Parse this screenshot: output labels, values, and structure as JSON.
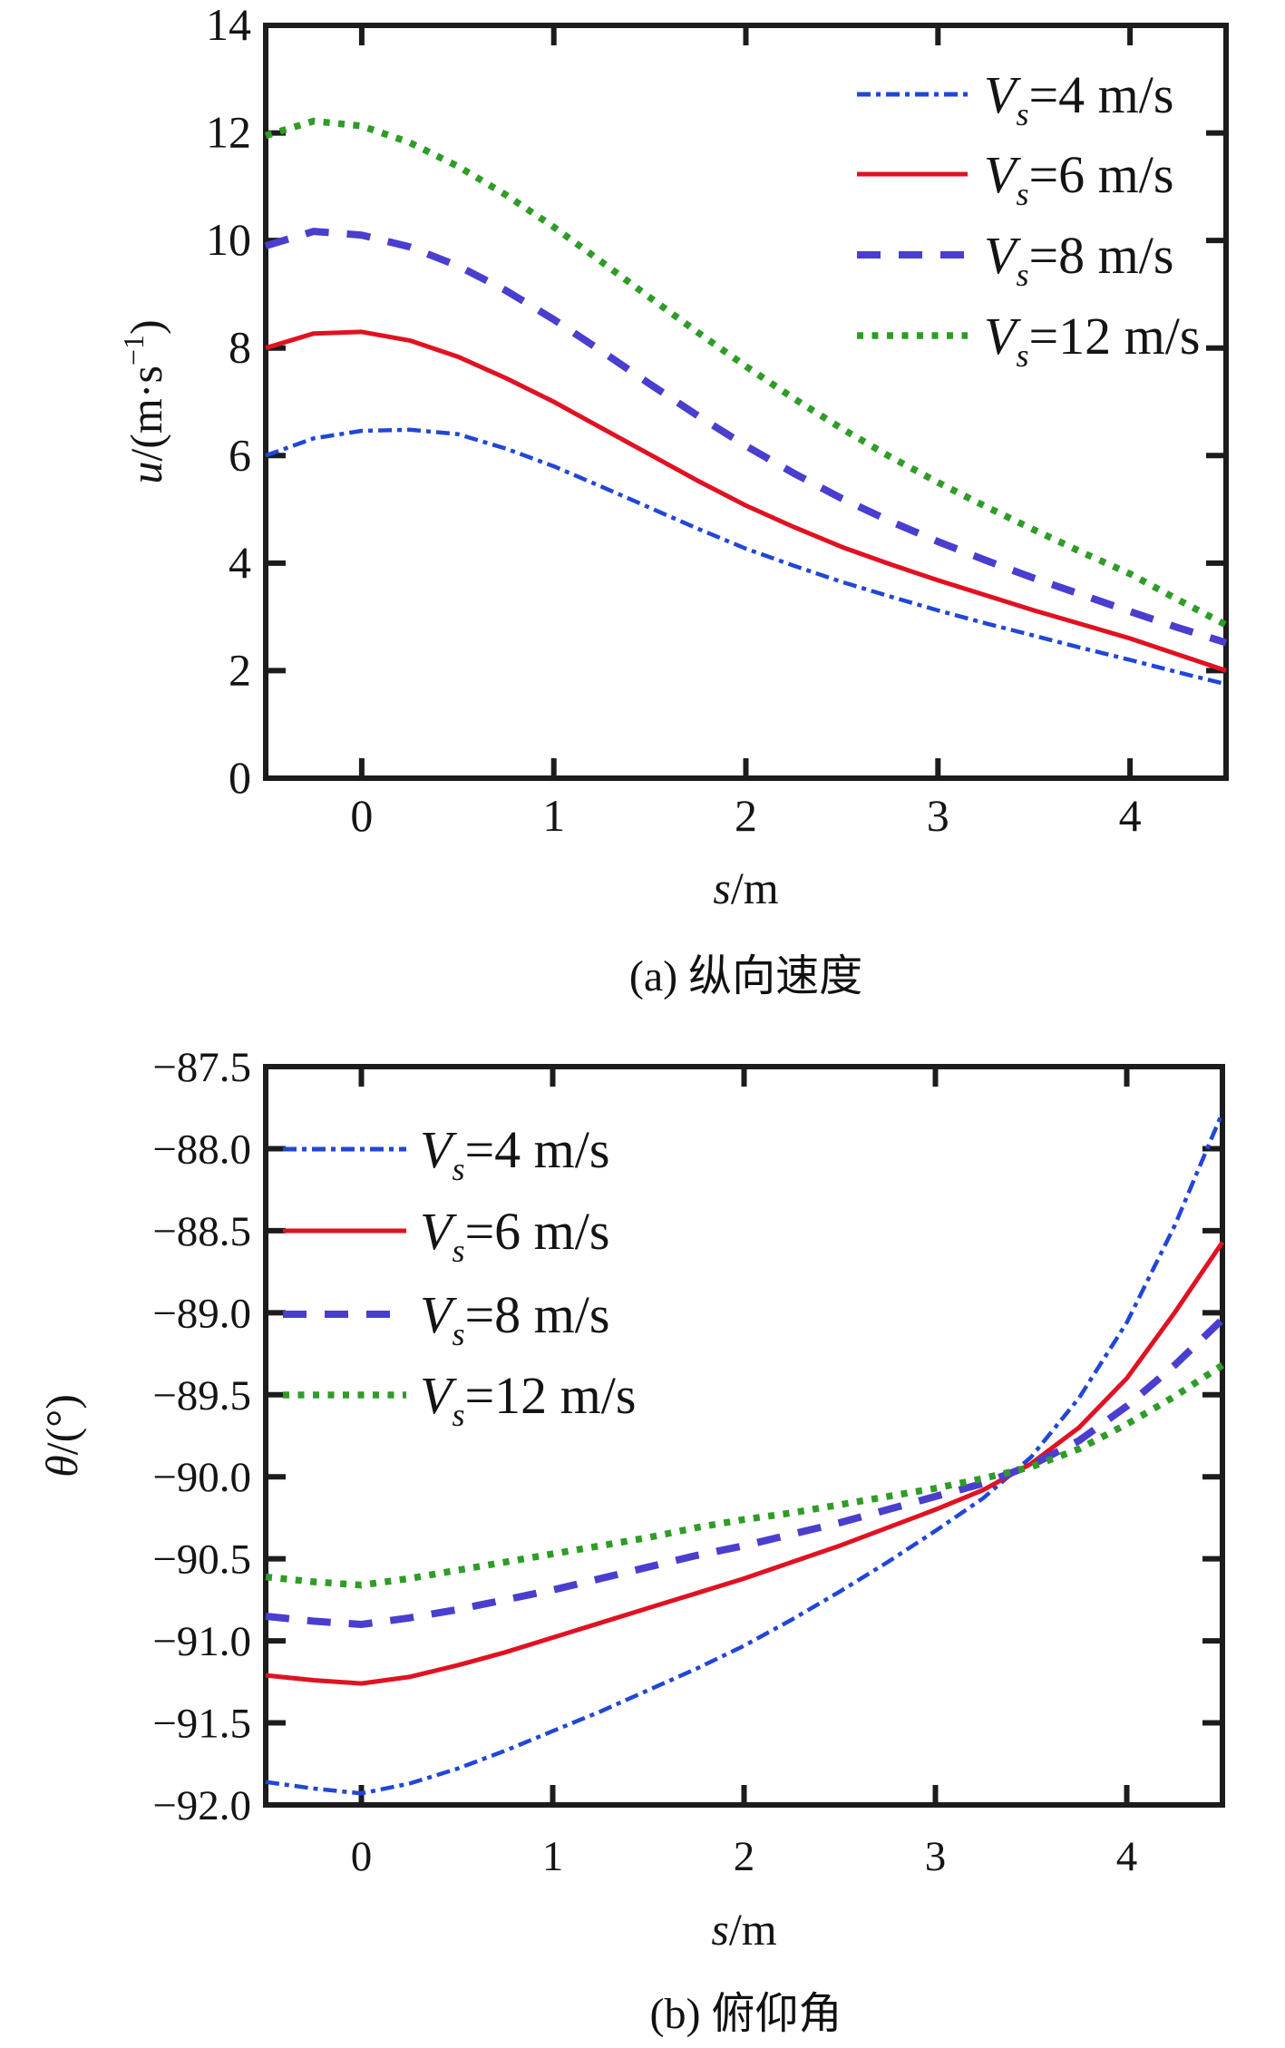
{
  "axis_color": "#1c1c1c",
  "background_color": "#ffffff",
  "chart_data": [
    {
      "id": "a",
      "type": "line",
      "title": "(a) 纵向速度",
      "xlabel": "s/m",
      "ylabel": "u/(m·s⁻¹)",
      "xlabel_parts": [
        {
          "t": "s",
          "i": 1
        },
        {
          "t": "/m"
        }
      ],
      "ylabel_parts": [
        {
          "t": "u",
          "i": 1
        },
        {
          "t": "/(m·s"
        },
        {
          "t": "−1",
          "sup": 1
        },
        {
          "t": ")"
        }
      ],
      "xlim": [
        -0.5,
        4.5
      ],
      "ylim": [
        0,
        14
      ],
      "xticks": {
        "values": [
          0,
          1,
          2,
          3,
          4
        ],
        "labels": [
          "0",
          "1",
          "2",
          "3",
          "4"
        ]
      },
      "yticks": {
        "values": [
          0,
          2,
          4,
          6,
          8,
          10,
          12,
          14
        ],
        "labels": [
          "0",
          "2",
          "4",
          "6",
          "8",
          "10",
          "12",
          "14"
        ]
      },
      "grid": false,
      "legend_position": "top-right",
      "x": [
        -0.5,
        -0.25,
        0,
        0.25,
        0.5,
        0.75,
        1,
        1.25,
        1.5,
        1.75,
        2,
        2.25,
        2.5,
        2.75,
        3,
        3.25,
        3.5,
        3.75,
        4,
        4.25,
        4.5
      ],
      "series": [
        {
          "key": "vs4",
          "label": "Vs=4 m/s",
          "label_parts": [
            {
              "t": "V",
              "i": 1
            },
            {
              "t": "s",
              "i": 1,
              "sub": 1
            },
            {
              "t": "=4 m/s"
            }
          ],
          "color": "#2147d6",
          "line_style": "dash-dot",
          "width": 4.5,
          "y": [
            6.0,
            6.32,
            6.46,
            6.48,
            6.4,
            6.13,
            5.8,
            5.42,
            5.03,
            4.64,
            4.27,
            3.95,
            3.65,
            3.38,
            3.12,
            2.88,
            2.65,
            2.42,
            2.2,
            1.97,
            1.75
          ]
        },
        {
          "key": "vs6",
          "label": "Vs=6 m/s",
          "label_parts": [
            {
              "t": "V",
              "i": 1
            },
            {
              "t": "s",
              "i": 1,
              "sub": 1
            },
            {
              "t": "=6 m/s"
            }
          ],
          "color": "#e01222",
          "line_style": "solid",
          "width": 5,
          "y": [
            8.0,
            8.27,
            8.3,
            8.14,
            7.84,
            7.44,
            7.0,
            6.51,
            6.02,
            5.53,
            5.07,
            4.67,
            4.3,
            3.98,
            3.68,
            3.4,
            3.12,
            2.86,
            2.6,
            2.3,
            2.0
          ]
        },
        {
          "key": "vs8",
          "label": "Vs=8 m/s",
          "label_parts": [
            {
              "t": "V",
              "i": 1
            },
            {
              "t": "s",
              "i": 1,
              "sub": 1
            },
            {
              "t": "=8 m/s"
            }
          ],
          "color": "#4a3ecf",
          "line_style": "dashed",
          "width": 8,
          "y": [
            9.9,
            10.17,
            10.1,
            9.88,
            9.53,
            9.07,
            8.53,
            7.94,
            7.33,
            6.74,
            6.18,
            5.67,
            5.2,
            4.78,
            4.4,
            4.05,
            3.72,
            3.41,
            3.1,
            2.8,
            2.52
          ]
        },
        {
          "key": "vs12",
          "label": "Vs=12 m/s",
          "label_parts": [
            {
              "t": "V",
              "i": 1
            },
            {
              "t": "s",
              "i": 1,
              "sub": 1
            },
            {
              "t": "=12 m/s"
            }
          ],
          "color": "#2f9c27",
          "line_style": "dotted",
          "width": 7.5,
          "y": [
            11.95,
            12.22,
            12.13,
            11.82,
            11.38,
            10.85,
            10.25,
            9.6,
            8.94,
            8.29,
            7.66,
            7.06,
            6.5,
            5.98,
            5.5,
            5.05,
            4.62,
            4.2,
            3.8,
            3.32,
            2.85
          ]
        }
      ]
    },
    {
      "id": "b",
      "type": "line",
      "title": "(b) 俯仰角",
      "xlabel": "s/m",
      "ylabel": "θ/(°)",
      "xlabel_parts": [
        {
          "t": "s",
          "i": 1
        },
        {
          "t": "/m"
        }
      ],
      "ylabel_parts": [
        {
          "t": "θ",
          "i": 1
        },
        {
          "t": "/(°)"
        }
      ],
      "xlim": [
        -0.5,
        4.5
      ],
      "ylim": [
        -92.0,
        -87.5
      ],
      "xticks": {
        "values": [
          0,
          1,
          2,
          3,
          4
        ],
        "labels": [
          "0",
          "1",
          "2",
          "3",
          "4"
        ]
      },
      "yticks": {
        "values": [
          -87.5,
          -88.0,
          -88.5,
          -89.0,
          -89.5,
          -90.0,
          -90.5,
          -91.0,
          -91.5,
          -92.0
        ],
        "labels": [
          "−87.5",
          "−88.0",
          "−88.5",
          "−89.0",
          "−89.5",
          "−90.0",
          "−90.5",
          "−91.0",
          "−91.5",
          "−92.0"
        ]
      },
      "grid": false,
      "legend_position": "top-left",
      "x": [
        -0.5,
        -0.25,
        0,
        0.25,
        0.5,
        0.75,
        1,
        1.25,
        1.5,
        1.75,
        2,
        2.25,
        2.5,
        2.75,
        3,
        3.25,
        3.5,
        3.75,
        4,
        4.25,
        4.5
      ],
      "series": [
        {
          "key": "vs4",
          "label": "Vs=4 m/s",
          "label_parts": [
            {
              "t": "V",
              "i": 1
            },
            {
              "t": "s",
              "i": 1,
              "sub": 1
            },
            {
              "t": "=4 m/s"
            }
          ],
          "color": "#2147d6",
          "line_style": "dash-dot",
          "width": 4.5,
          "y": [
            -91.86,
            -91.9,
            -91.93,
            -91.87,
            -91.78,
            -91.67,
            -91.55,
            -91.43,
            -91.3,
            -91.17,
            -91.03,
            -90.87,
            -90.7,
            -90.52,
            -90.33,
            -90.13,
            -89.88,
            -89.52,
            -89.06,
            -88.47,
            -87.78
          ]
        },
        {
          "key": "vs6",
          "label": "Vs=6 m/s",
          "label_parts": [
            {
              "t": "V",
              "i": 1
            },
            {
              "t": "s",
              "i": 1,
              "sub": 1
            },
            {
              "t": "=6 m/s"
            }
          ],
          "color": "#e01222",
          "line_style": "solid",
          "width": 5,
          "y": [
            -91.21,
            -91.24,
            -91.26,
            -91.22,
            -91.15,
            -91.07,
            -90.98,
            -90.89,
            -90.8,
            -90.71,
            -90.62,
            -90.52,
            -90.42,
            -90.31,
            -90.2,
            -90.08,
            -89.92,
            -89.7,
            -89.4,
            -89.0,
            -88.57
          ]
        },
        {
          "key": "vs8",
          "label": "Vs=8 m/s",
          "label_parts": [
            {
              "t": "V",
              "i": 1
            },
            {
              "t": "s",
              "i": 1,
              "sub": 1
            },
            {
              "t": "=8 m/s"
            }
          ],
          "color": "#4a3ecf",
          "line_style": "dashed",
          "width": 8,
          "y": [
            -90.85,
            -90.88,
            -90.9,
            -90.86,
            -90.81,
            -90.75,
            -90.69,
            -90.62,
            -90.55,
            -90.48,
            -90.42,
            -90.35,
            -90.28,
            -90.2,
            -90.12,
            -90.04,
            -89.93,
            -89.78,
            -89.57,
            -89.32,
            -89.04
          ]
        },
        {
          "key": "vs12",
          "label": "Vs=12 m/s",
          "label_parts": [
            {
              "t": "V",
              "i": 1
            },
            {
              "t": "s",
              "i": 1,
              "sub": 1
            },
            {
              "t": "=12 m/s"
            }
          ],
          "color": "#2f9c27",
          "line_style": "dotted",
          "width": 7.5,
          "y": [
            -90.61,
            -90.64,
            -90.66,
            -90.62,
            -90.57,
            -90.52,
            -90.47,
            -90.42,
            -90.37,
            -90.31,
            -90.26,
            -90.22,
            -90.17,
            -90.12,
            -90.07,
            -90.01,
            -89.94,
            -89.83,
            -89.68,
            -89.51,
            -89.32
          ]
        }
      ]
    }
  ]
}
